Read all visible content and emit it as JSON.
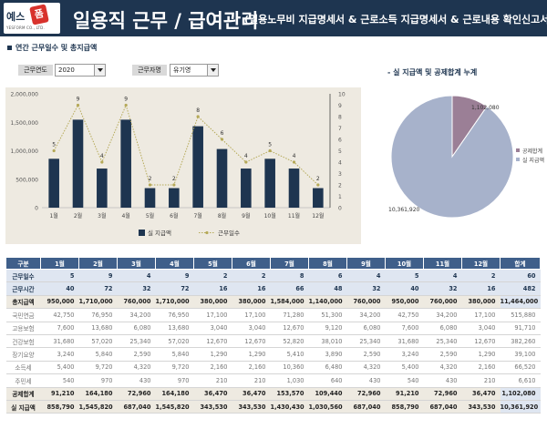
{
  "header": {
    "logo_text": "예스",
    "logo_badge": "폼",
    "logo_sub": "YESFORM CO., LTD.",
    "title": "일용직 근무 / 급여관리",
    "subtitle": "(일용노무비 지급명세서 & 근로소득 지급명세서 & 근로내용 확인신고서"
  },
  "section_title": "연간 근무일수 및 총지급액",
  "filters": {
    "year_label": "근무연도",
    "year_value": "2020",
    "worker_label": "근무자명",
    "worker_value": "유기영"
  },
  "chart_data": [
    {
      "type": "bar",
      "categories": [
        "1월",
        "2월",
        "3월",
        "4월",
        "5월",
        "6월",
        "7월",
        "8월",
        "9월",
        "10월",
        "11월",
        "12월"
      ],
      "series": [
        {
          "name": "실 지급액",
          "type": "bar",
          "axis": "left",
          "values": [
            858790,
            1545820,
            687040,
            1545820,
            343530,
            343530,
            1430430,
            1030560,
            687040,
            858790,
            687040,
            343530
          ]
        },
        {
          "name": "근무일수",
          "type": "line",
          "axis": "right",
          "values": [
            5,
            9,
            4,
            9,
            2,
            2,
            8,
            6,
            4,
            5,
            4,
            2
          ]
        }
      ],
      "left_axis": {
        "min": 0,
        "max": 2000000,
        "step": 500000,
        "tick_labels": [
          "0",
          "500,000",
          "1,000,000",
          "1,500,000",
          "2,000,000"
        ]
      },
      "right_axis": {
        "min": 0,
        "max": 10,
        "step": 1
      },
      "legend": [
        "실 지급액",
        "근무일수"
      ],
      "colors": {
        "bar": "#1e3550",
        "line": "#b5a958"
      }
    },
    {
      "type": "pie",
      "title": "- 실 지급액 및 공제합계 누계",
      "slices": [
        {
          "name": "공제합계",
          "value": 1102080,
          "label": "1,102,080",
          "color": "#9b7f96"
        },
        {
          "name": "실 지급액",
          "value": 10361920,
          "label": "10,361,920",
          "color": "#a7b2cb"
        }
      ],
      "legend_order": [
        "공제합계",
        "실 지급액"
      ]
    }
  ],
  "table": {
    "headers": [
      "구분",
      "1월",
      "2월",
      "3월",
      "4월",
      "5월",
      "6월",
      "7월",
      "8월",
      "9월",
      "10월",
      "11월",
      "12월",
      "합계"
    ],
    "rows": [
      {
        "label": "근무일수",
        "style": "blue",
        "values": [
          "5",
          "9",
          "4",
          "9",
          "2",
          "2",
          "8",
          "6",
          "4",
          "5",
          "4",
          "2",
          "60"
        ]
      },
      {
        "label": "근무시간",
        "style": "blue",
        "values": [
          "40",
          "72",
          "32",
          "72",
          "16",
          "16",
          "66",
          "48",
          "32",
          "40",
          "32",
          "16",
          "482"
        ]
      },
      {
        "label": "총지급액",
        "style": "shade",
        "values": [
          "950,000",
          "1,710,000",
          "760,000",
          "1,710,000",
          "380,000",
          "380,000",
          "1,584,000",
          "1,140,000",
          "760,000",
          "950,000",
          "760,000",
          "380,000",
          "11,464,000"
        ]
      },
      {
        "label": "국민연금",
        "style": "plain",
        "values": [
          "42,750",
          "76,950",
          "34,200",
          "76,950",
          "17,100",
          "17,100",
          "71,280",
          "51,300",
          "34,200",
          "42,750",
          "34,200",
          "17,100",
          "515,880"
        ]
      },
      {
        "label": "고용보험",
        "style": "plain",
        "values": [
          "7,600",
          "13,680",
          "6,080",
          "13,680",
          "3,040",
          "3,040",
          "12,670",
          "9,120",
          "6,080",
          "7,600",
          "6,080",
          "3,040",
          "91,710"
        ]
      },
      {
        "label": "건강보험",
        "style": "plain",
        "values": [
          "31,680",
          "57,020",
          "25,340",
          "57,020",
          "12,670",
          "12,670",
          "52,820",
          "38,010",
          "25,340",
          "31,680",
          "25,340",
          "12,670",
          "382,260"
        ]
      },
      {
        "label": "장기요양",
        "style": "plain",
        "values": [
          "3,240",
          "5,840",
          "2,590",
          "5,840",
          "1,290",
          "1,290",
          "5,410",
          "3,890",
          "2,590",
          "3,240",
          "2,590",
          "1,290",
          "39,100"
        ]
      },
      {
        "label": "소득세",
        "style": "plain",
        "values": [
          "5,400",
          "9,720",
          "4,320",
          "9,720",
          "2,160",
          "2,160",
          "10,360",
          "6,480",
          "4,320",
          "5,400",
          "4,320",
          "2,160",
          "66,520"
        ]
      },
      {
        "label": "주민세",
        "style": "plain",
        "values": [
          "540",
          "970",
          "430",
          "970",
          "210",
          "210",
          "1,030",
          "640",
          "430",
          "540",
          "430",
          "210",
          "6,610"
        ]
      },
      {
        "label": "공제합계",
        "style": "shade-top",
        "values": [
          "91,210",
          "164,180",
          "72,960",
          "164,180",
          "36,470",
          "36,470",
          "153,570",
          "109,440",
          "72,960",
          "91,210",
          "72,960",
          "36,470",
          "1,102,080"
        ]
      },
      {
        "label": "실 지급액",
        "style": "shade",
        "values": [
          "858,790",
          "1,545,820",
          "687,040",
          "1,545,820",
          "343,530",
          "343,530",
          "1,430,430",
          "1,030,560",
          "687,040",
          "858,790",
          "687,040",
          "343,530",
          "10,361,920"
        ]
      }
    ]
  }
}
